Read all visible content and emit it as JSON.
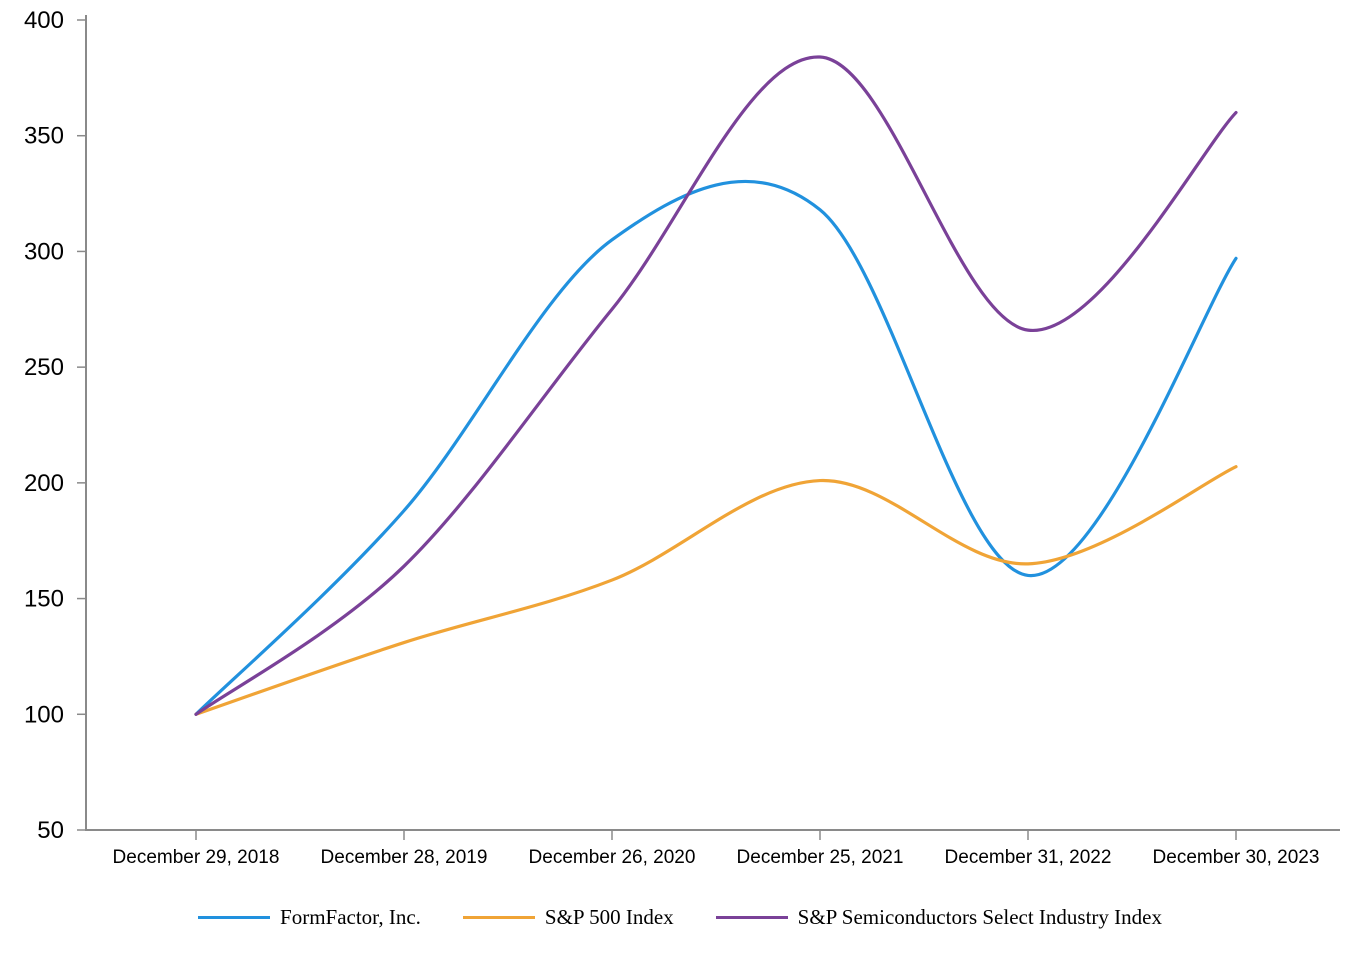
{
  "chart_data": {
    "type": "line",
    "title": "",
    "categories": [
      "December 29, 2018",
      "December 28, 2019",
      "December 26, 2020",
      "December 25, 2021",
      "December 31, 2022",
      "December 30, 2023"
    ],
    "series": [
      {
        "name": "FormFactor, Inc.",
        "color": "#2191de",
        "values": [
          100,
          188,
          305,
          318,
          160,
          297
        ]
      },
      {
        "name": "S&P 500 Index",
        "color": "#f0a436",
        "values": [
          100,
          131,
          158,
          201,
          165,
          207
        ]
      },
      {
        "name": "S&P Semiconductors Select Industry Index",
        "color": "#7a4198",
        "values": [
          100,
          164,
          275,
          384,
          266,
          360
        ]
      }
    ],
    "ylim": [
      50,
      400
    ],
    "y_ticks": [
      50,
      100,
      150,
      200,
      250,
      300,
      350,
      400
    ],
    "grid": false,
    "line_style": "smooth",
    "legend_position": "bottom",
    "axis_color": "#8a8a8a",
    "label_color": "#000000"
  }
}
